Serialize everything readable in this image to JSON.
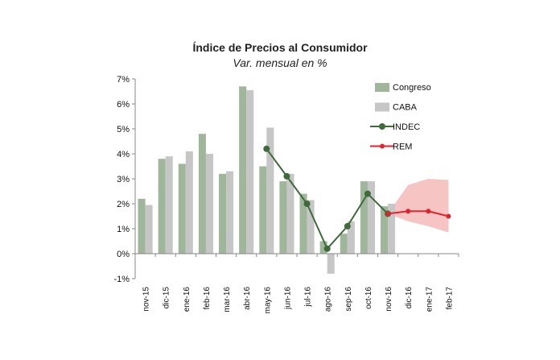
{
  "chart_data": {
    "type": "bar",
    "title": "Índice de Precios al Consumidor",
    "subtitle": "Var. mensual en %",
    "xlabel": "",
    "ylabel": "",
    "ylim": [
      -1,
      7
    ],
    "yticks": [
      "-1%",
      "0%",
      "1%",
      "2%",
      "3%",
      "4%",
      "5%",
      "6%",
      "7%"
    ],
    "ytick_values": [
      -1,
      0,
      1,
      2,
      3,
      4,
      5,
      6,
      7
    ],
    "categories": [
      "nov-15",
      "dic-15",
      "ene-16",
      "feb-16",
      "mar-16",
      "abr-16",
      "may-16",
      "jun-16",
      "jul-16",
      "ago-16",
      "sep-16",
      "oct-16",
      "nov-16",
      "dic-16",
      "ene-17",
      "feb-17"
    ],
    "legend_position": "top-right",
    "grid": false,
    "series": [
      {
        "name": "Congreso",
        "kind": "bar",
        "color": "#9fb69b",
        "values": [
          2.2,
          3.8,
          3.6,
          4.8,
          3.2,
          6.7,
          3.5,
          2.9,
          2.4,
          0.5,
          0.8,
          2.9,
          1.9,
          null,
          null,
          null
        ]
      },
      {
        "name": "CABA",
        "kind": "bar",
        "color": "#c6c6c6",
        "values": [
          1.95,
          3.9,
          4.1,
          4.0,
          3.3,
          6.55,
          5.05,
          3.2,
          2.15,
          -0.8,
          1.3,
          2.9,
          2.0,
          null,
          null,
          null
        ]
      },
      {
        "name": "INDEC",
        "kind": "line",
        "color": "#3f6b3a",
        "values": [
          null,
          null,
          null,
          null,
          null,
          null,
          4.2,
          3.1,
          2.0,
          0.2,
          1.1,
          2.4,
          1.6,
          null,
          null,
          null
        ]
      },
      {
        "name": "REM",
        "kind": "line",
        "color": "#e0232c",
        "values": [
          null,
          null,
          null,
          null,
          null,
          null,
          null,
          null,
          null,
          null,
          null,
          null,
          1.6,
          1.7,
          1.7,
          1.5
        ]
      }
    ],
    "rem_band": {
      "color": "#f7c4c4",
      "low": [
        null,
        null,
        null,
        null,
        null,
        null,
        null,
        null,
        null,
        null,
        null,
        null,
        1.6,
        1.3,
        1.1,
        0.85
      ],
      "high": [
        null,
        null,
        null,
        null,
        null,
        null,
        null,
        null,
        null,
        null,
        null,
        null,
        1.6,
        2.75,
        3.0,
        2.95
      ]
    }
  }
}
